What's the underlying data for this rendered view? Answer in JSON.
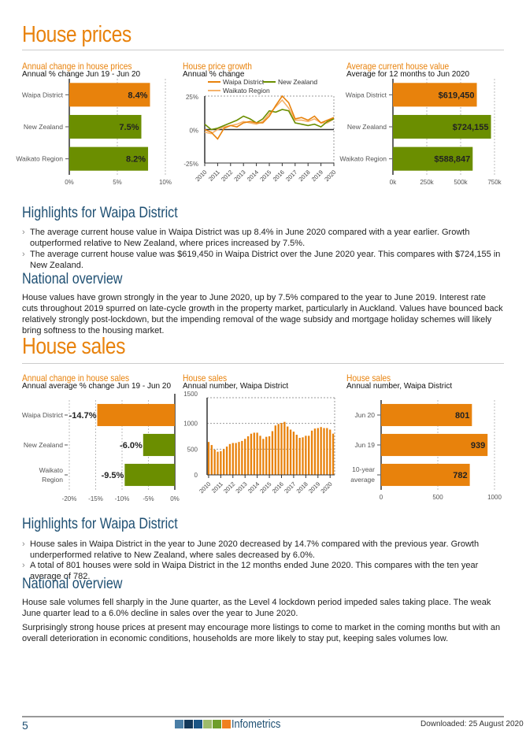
{
  "colors": {
    "orange": "#e8820c",
    "green": "#6b8e00",
    "light_orange": "#f5b26b",
    "blue": "#1e4f72"
  },
  "prices": {
    "title": "House prices",
    "chart1": {
      "title": "Annual change in house prices",
      "subtitle": "Annual % change Jun 19 - Jun 20"
    },
    "chart2": {
      "title": "House price growth",
      "subtitle": "Annual % change"
    },
    "chart3": {
      "title": "Average current house value",
      "subtitle": "Average for 12 months to Jun 2020"
    },
    "highlights_title": "Highlights for Waipa District",
    "bullets": [
      "The average current house value in Waipa District was up 8.4% in June 2020 compared with a year earlier. Growth outperformed relative to New Zealand, where prices increased by 7.5%.",
      "The average current house value was $619,450 in Waipa District over the June 2020 year. This compares with $724,155 in New Zealand."
    ],
    "national_title": "National overview",
    "paragraphs": [
      "House values have grown strongly in the year to June 2020, up by 7.5% compared to the year to June 2019. Interest rate cuts throughout 2019 spurred on late-cycle growth in the property market, particularly in Auckland. Values have bounced back relatively strongly post-lockdown, but the impending removal of the wage subsidy and mortgage holiday schemes will likely bring softness to the housing market."
    ]
  },
  "sales": {
    "title": "House sales",
    "chart1": {
      "title": "Annual change in house sales",
      "subtitle": "Annual average % change Jun 19 - Jun 20"
    },
    "chart2": {
      "title": "House sales",
      "subtitle": "Annual number, Waipa District"
    },
    "chart3": {
      "title": "House sales",
      "subtitle": "Annual number, Waipa District"
    },
    "highlights_title": "Highlights for Waipa District",
    "bullets": [
      "House sales in Waipa District in the year to June 2020 decreased by 14.7% compared with the previous year. Growth underperformed relative to New Zealand, where sales decreased by 6.0%.",
      "A total of 801 houses were sold in Waipa District in the 12 months ended June 2020. This compares with the ten year average of 782."
    ],
    "national_title": "National overview",
    "paragraphs": [
      "House sale volumes fell sharply in the June quarter, as the Level 4 lockdown period impeded sales taking place. The weak June quarter lead to a 6.0% decline in sales over the year to June 2020.",
      "Surprisingly strong house prices at present may encourage more listings to come to market in the coming months but with an overall deterioration in economic conditions, households are more likely to stay put, keeping sales volumes low."
    ]
  },
  "chart_data": [
    {
      "type": "bar",
      "orientation": "horizontal",
      "title": "Annual change in house prices",
      "subtitle": "Annual % change Jun 19 - Jun 20",
      "categories": [
        "Waipa District",
        "New Zealand",
        "Waikato Region"
      ],
      "values": [
        8.4,
        7.5,
        8.2
      ],
      "labels": [
        "8.4%",
        "7.5%",
        "8.2%"
      ],
      "colors": [
        "#e8820c",
        "#6b8e00",
        "#6b8e00"
      ],
      "xlim": [
        0,
        10
      ],
      "ticks": [
        0,
        5,
        10
      ],
      "tick_labels": [
        "0%",
        "5%",
        "10%"
      ]
    },
    {
      "type": "line",
      "title": "House price growth",
      "subtitle": "Annual % change",
      "x": [
        2010,
        2010.5,
        2011,
        2011.5,
        2012,
        2012.5,
        2013,
        2013.5,
        2014,
        2014.5,
        2015,
        2015.5,
        2016,
        2016.5,
        2017,
        2017.5,
        2018,
        2018.5,
        2019,
        2019.5,
        2020
      ],
      "series": [
        {
          "name": "Waipa District",
          "color": "#e8820c",
          "values": [
            0,
            -2,
            -7,
            1,
            3,
            2,
            5,
            6,
            5,
            5,
            10,
            18,
            25,
            20,
            8,
            9,
            7,
            10,
            5,
            7,
            9
          ]
        },
        {
          "name": "New Zealand",
          "color": "#6b8e00",
          "values": [
            4,
            0,
            1,
            3,
            5,
            7,
            10,
            8,
            5,
            8,
            14,
            13,
            15,
            14,
            5,
            4,
            3,
            4,
            2,
            6,
            8
          ]
        },
        {
          "name": "Waikato Region",
          "color": "#f5b26b",
          "values": [
            -2,
            -3,
            0,
            2,
            3,
            4,
            6,
            5,
            4,
            6,
            12,
            17,
            22,
            16,
            7,
            7,
            6,
            8,
            5,
            5,
            8
          ]
        }
      ],
      "ylim": [
        -25,
        25
      ],
      "y_tick_labels": [
        "25%",
        "0%",
        "-25%"
      ],
      "x_tick_labels": [
        "2010",
        "2011",
        "2012",
        "2013",
        "2014",
        "2015",
        "2016",
        "2017",
        "2018",
        "2019",
        "2020"
      ],
      "legend": "top"
    },
    {
      "type": "bar",
      "orientation": "horizontal",
      "title": "Average current house value",
      "subtitle": "Average for 12 months to Jun 2020",
      "categories": [
        "Waipa District",
        "New Zealand",
        "Waikato Region"
      ],
      "values": [
        619450,
        724155,
        588847
      ],
      "labels": [
        "$619,450",
        "$724,155",
        "$588,847"
      ],
      "colors": [
        "#e8820c",
        "#6b8e00",
        "#6b8e00"
      ],
      "xlim": [
        0,
        750000
      ],
      "ticks": [
        0,
        250000,
        500000,
        750000
      ],
      "tick_labels": [
        "0k",
        "250k",
        "500k",
        "750k"
      ]
    },
    {
      "type": "bar",
      "orientation": "horizontal",
      "title": "Annual change in house sales",
      "subtitle": "Annual average % change Jun 19 - Jun 20",
      "categories": [
        "Waipa District",
        "New Zealand",
        "Waikato Region"
      ],
      "values": [
        -14.7,
        -6.0,
        -9.5
      ],
      "labels": [
        "-14.7%",
        "-6.0%",
        "-9.5%"
      ],
      "colors": [
        "#e8820c",
        "#6b8e00",
        "#6b8e00"
      ],
      "xlim": [
        -20,
        0
      ],
      "ticks": [
        -20,
        -15,
        -10,
        -5,
        0
      ],
      "tick_labels": [
        "-20%",
        "-15%",
        "-10%",
        "-5%",
        "0%"
      ]
    },
    {
      "type": "bar",
      "orientation": "vertical",
      "title": "House sales",
      "subtitle": "Annual number, Waipa District",
      "x_start": 2010,
      "values": [
        640,
        580,
        490,
        450,
        460,
        500,
        550,
        600,
        620,
        620,
        640,
        660,
        700,
        750,
        800,
        820,
        820,
        760,
        700,
        740,
        750,
        850,
        960,
        990,
        1010,
        1030,
        940,
        880,
        840,
        780,
        720,
        730,
        760,
        760,
        860,
        900,
        910,
        930,
        910,
        910,
        880,
        801
      ],
      "ylim": [
        0,
        1500
      ],
      "y_tick_labels": [
        "1500",
        "1000",
        "500",
        "0"
      ],
      "x_tick_labels": [
        "2010",
        "2011",
        "2012",
        "2013",
        "2014",
        "2015",
        "2016",
        "2017",
        "2018",
        "2019",
        "2020"
      ],
      "color": "#e8820c"
    },
    {
      "type": "bar",
      "orientation": "horizontal",
      "title": "House sales",
      "subtitle": "Annual number, Waipa District",
      "categories": [
        "Jun 20",
        "Jun 19",
        "10-year average"
      ],
      "values": [
        801,
        939,
        782
      ],
      "labels": [
        "801",
        "939",
        "782"
      ],
      "colors": [
        "#e8820c",
        "#e8820c",
        "#e8820c"
      ],
      "xlim": [
        0,
        1000
      ],
      "ticks": [
        0,
        500,
        1000
      ],
      "tick_labels": [
        "0",
        "500",
        "1000"
      ]
    }
  ],
  "footer": {
    "page": "5",
    "brand": "Infometrics",
    "downloaded": "Downloaded: 25 August 2020",
    "logo_colors": [
      "#4a7ea6",
      "#12385a",
      "#1a5585",
      "#9dbb6a",
      "#6e9e2a",
      "#f08020"
    ]
  }
}
